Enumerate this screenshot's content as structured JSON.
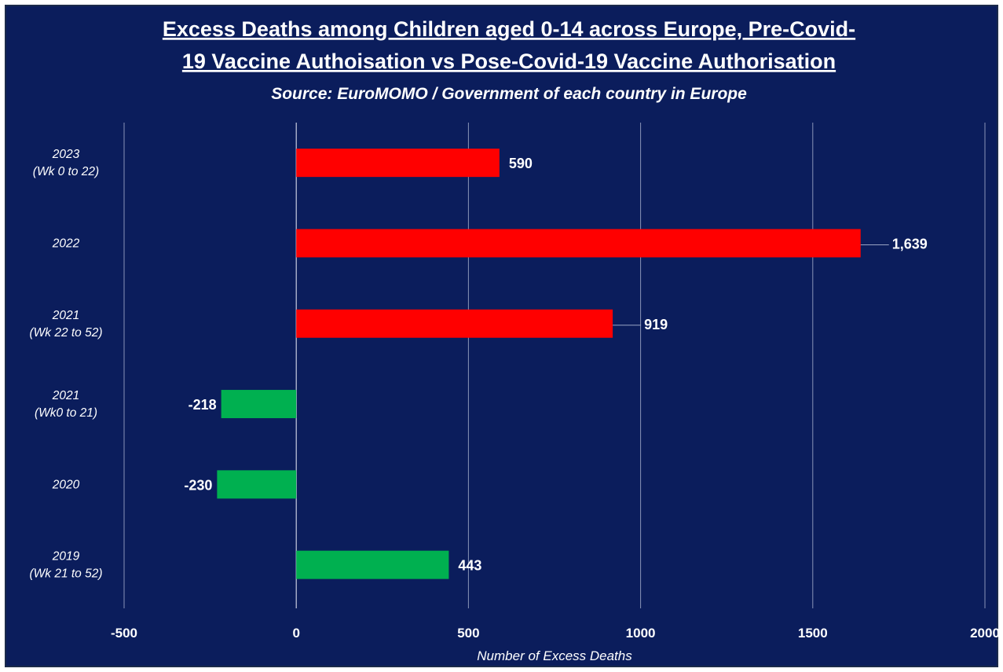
{
  "chart_data": {
    "type": "bar",
    "orientation": "horizontal",
    "title_line1": "Excess Deaths among Children aged 0-14 across Europe, Pre-Covid-",
    "title_line2": "19 Vaccine Authoisation vs Pose-Covid-19 Vaccine Authorisation",
    "subtitle": "Source: EuroMOMO / Government of each country in Europe",
    "xlabel": "Number of Excess Deaths",
    "ylabel": "",
    "xlim": [
      -500,
      2000
    ],
    "xticks": [
      "-500",
      "0",
      "500",
      "1000",
      "1500",
      "2000"
    ],
    "grid": true,
    "legend": "none",
    "categories": [
      {
        "line1": "2023",
        "line2": "(Wk 0 to 22)"
      },
      {
        "line1": "2022",
        "line2": ""
      },
      {
        "line1": "2021",
        "line2": "(Wk 22 to 52)"
      },
      {
        "line1": "2021",
        "line2": "(Wk0 to 21)"
      },
      {
        "line1": "2020",
        "line2": ""
      },
      {
        "line1": "2019",
        "line2": "(Wk 21 to 52)"
      }
    ],
    "values": [
      590,
      1639,
      919,
      -218,
      -230,
      443
    ],
    "data_labels": [
      "590",
      "1,639",
      "919",
      "-218",
      "-230",
      "443"
    ],
    "bar_colors": [
      "#ff0000",
      "#ff0000",
      "#ff0000",
      "#00b050",
      "#00b050",
      "#00b050"
    ],
    "colors": {
      "background": "#0b1d5c",
      "text": "#ffffff",
      "post_vaccine": "#ff0000",
      "pre_vaccine": "#00b050"
    }
  }
}
